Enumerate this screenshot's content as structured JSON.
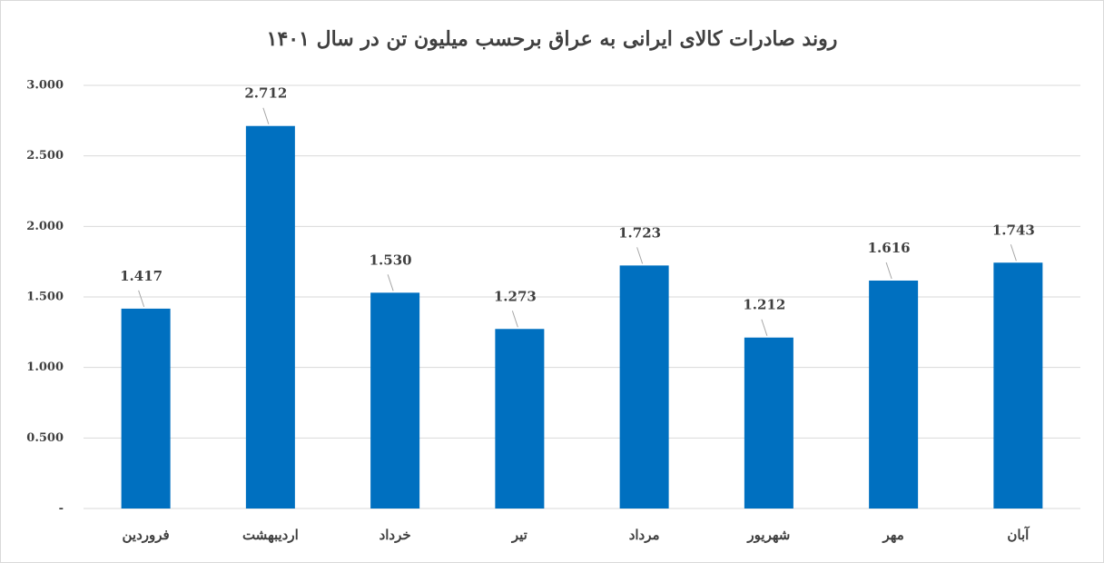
{
  "chart_data": {
    "type": "bar",
    "title": "روند صادرات کالای ایرانی به عراق برحسب میلیون تن در سال ۱۴۰۱",
    "categories": [
      "فروردین",
      "اردیبهشت",
      "خرداد",
      "تیر",
      "مرداد",
      "شهریور",
      "مهر",
      "آبان"
    ],
    "values": [
      1.417,
      2.712,
      1.53,
      1.273,
      1.723,
      1.212,
      1.616,
      1.743
    ],
    "value_labels": [
      "1.417",
      "2.712",
      "1.530",
      "1.273",
      "1.723",
      "1.212",
      "1.616",
      "1.743"
    ],
    "color": "#0070c0",
    "ylim": [
      0,
      3
    ],
    "yticks": [
      {
        "value": 0,
        "label": "-"
      },
      {
        "value": 0.5,
        "label": "0.500"
      },
      {
        "value": 1,
        "label": "1.000"
      },
      {
        "value": 1.5,
        "label": "1.500"
      },
      {
        "value": 2,
        "label": "2.000"
      },
      {
        "value": 2.5,
        "label": "2.500"
      },
      {
        "value": 3,
        "label": "3.000"
      }
    ],
    "grid": true
  }
}
